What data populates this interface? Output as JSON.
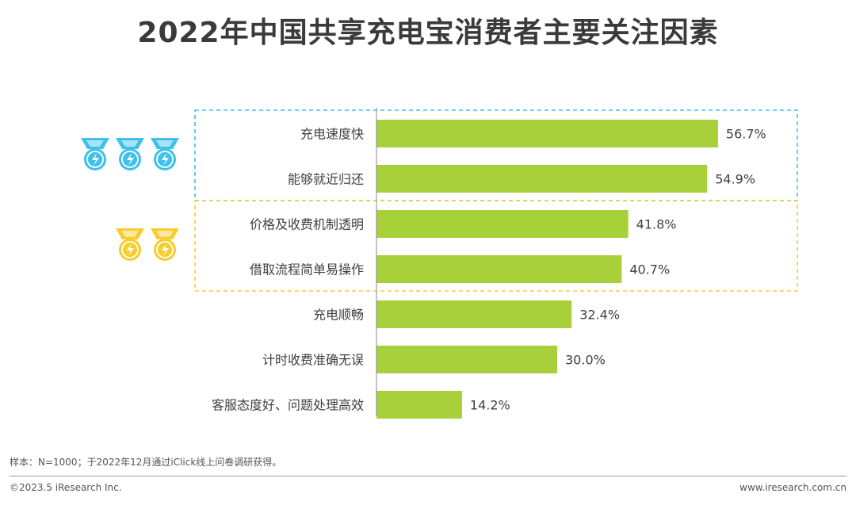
{
  "title": "2022年中国共享充电宝消费者主要关注因素",
  "chart_data": {
    "type": "bar",
    "orientation": "horizontal",
    "categories": [
      "充电速度快",
      "能够就近归还",
      "价格及收费机制透明",
      "借取流程简单易操作",
      "充电顺畅",
      "计时收费准确无误",
      "客服态度好、问题处理高效"
    ],
    "values": [
      56.7,
      54.9,
      41.8,
      40.7,
      32.4,
      30.0,
      14.2
    ],
    "value_labels": [
      "56.7%",
      "54.9%",
      "41.8%",
      "40.7%",
      "32.4%",
      "30.0%",
      "14.2%"
    ],
    "unit": "%",
    "xlim": [
      0,
      100
    ],
    "bar_color": "#a8d03a",
    "groups": [
      {
        "rows": [
          0,
          1
        ],
        "border_color": "#3ec1ea",
        "medal_count": 3,
        "medal_color": "#3ec1ea"
      },
      {
        "rows": [
          2,
          3
        ],
        "border_color": "#f7cd2b",
        "medal_count": 2,
        "medal_color": "#f7cd2b"
      }
    ]
  },
  "note": "样本：N=1000；于2022年12月通过iClick线上问卷调研获得。",
  "copyright": "©2023.5 iResearch Inc.",
  "website": "www.iresearch.com.cn"
}
